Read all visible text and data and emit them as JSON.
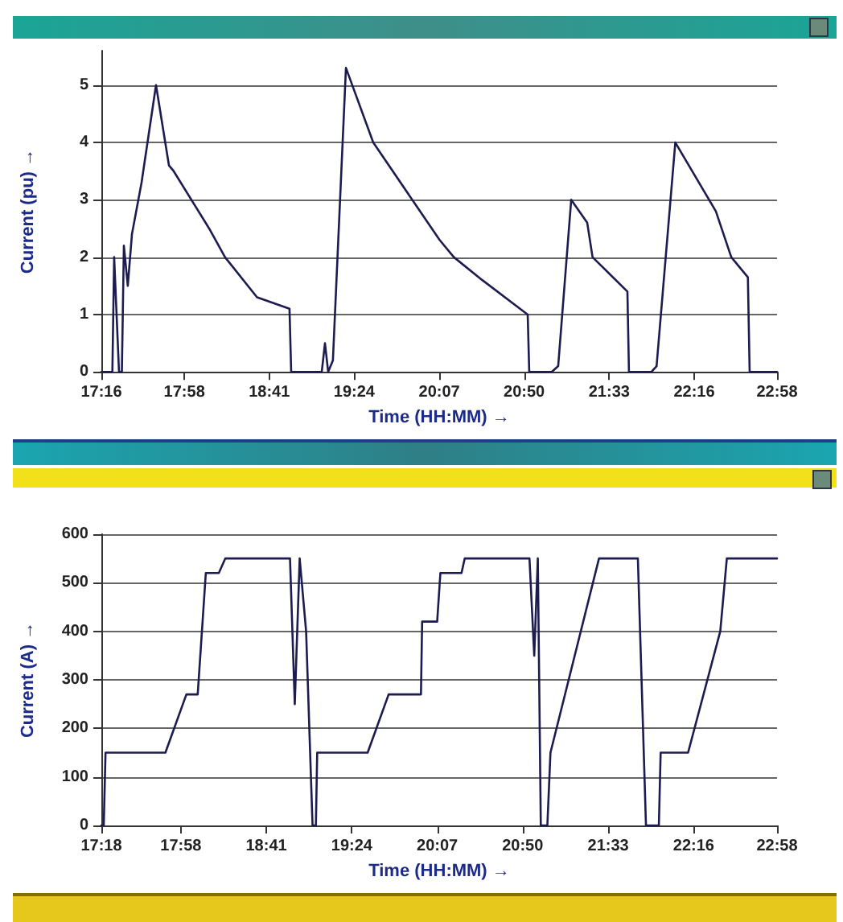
{
  "chart_data": [
    {
      "type": "line",
      "xlabel": "Time (HH:MM) →",
      "ylabel": "Current (pu) →",
      "grid": "y",
      "marker": "none",
      "line_style": "solid",
      "xlim": [
        17.267,
        22.966
      ],
      "xticks": [
        {
          "value": 17.267,
          "label": "17:16"
        },
        {
          "value": 17.967,
          "label": "17:58"
        },
        {
          "value": 18.683,
          "label": "18:41"
        },
        {
          "value": 19.4,
          "label": "19:24"
        },
        {
          "value": 20.117,
          "label": "20:07"
        },
        {
          "value": 20.833,
          "label": "20:50"
        },
        {
          "value": 21.55,
          "label": "21:33"
        },
        {
          "value": 22.267,
          "label": "22:16"
        },
        {
          "value": 22.966,
          "label": "22:58"
        }
      ],
      "ylim": [
        0,
        5.6
      ],
      "yticks": [
        0,
        1,
        2,
        3,
        4,
        5
      ],
      "series": [
        {
          "color": "#1c1c50",
          "x": [
            17.267,
            17.36,
            17.375,
            17.416,
            17.44,
            17.457,
            17.49,
            17.525,
            17.606,
            17.728,
            17.837,
            17.877,
            18.176,
            18.31,
            18.58,
            18.854,
            18.868,
            19.126,
            19.153,
            19.18,
            19.22,
            19.33,
            19.56,
            20.12,
            20.24,
            20.48,
            20.863,
            20.876,
            21.066,
            21.12,
            21.23,
            21.365,
            21.41,
            21.704,
            21.717,
            21.907,
            21.95,
            22.108,
            22.45,
            22.58,
            22.72,
            22.735,
            22.966
          ],
          "values": [
            0,
            0,
            2,
            0,
            0,
            2.2,
            1.5,
            2.4,
            3.3,
            5.0,
            3.6,
            3.5,
            2.5,
            2.0,
            1.3,
            1.1,
            0,
            0,
            0.5,
            0,
            0.2,
            5.3,
            4.0,
            2.3,
            2.0,
            1.6,
            1.0,
            0,
            0,
            0.1,
            3.0,
            2.6,
            2.0,
            1.4,
            0,
            0,
            0.1,
            4.0,
            2.8,
            2.0,
            1.65,
            0,
            0
          ]
        }
      ]
    },
    {
      "type": "line",
      "xlabel": "Time (HH:MM) →",
      "ylabel": "Current (A) →",
      "grid": "y",
      "marker": "none",
      "line_style": "solid",
      "xlim": [
        17.3,
        22.966
      ],
      "xticks": [
        {
          "value": 17.3,
          "label": "17:18"
        },
        {
          "value": 17.967,
          "label": "17:58"
        },
        {
          "value": 18.683,
          "label": "18:41"
        },
        {
          "value": 19.4,
          "label": "19:24"
        },
        {
          "value": 20.117,
          "label": "20:07"
        },
        {
          "value": 20.833,
          "label": "20:50"
        },
        {
          "value": 21.55,
          "label": "21:33"
        },
        {
          "value": 22.267,
          "label": "22:16"
        },
        {
          "value": 22.966,
          "label": "22:58"
        }
      ],
      "ylim": [
        0,
        600
      ],
      "yticks": [
        0,
        100,
        200,
        300,
        400,
        500,
        600
      ],
      "series": [
        {
          "color": "#1c1c50",
          "x": [
            17.3,
            17.32,
            17.335,
            17.837,
            18.013,
            18.108,
            18.176,
            18.285,
            18.339,
            18.882,
            18.922,
            18.963,
            19.017,
            19.071,
            19.099,
            19.11,
            19.533,
            19.709,
            19.98,
            19.99,
            20.116,
            20.143,
            20.32,
            20.347,
            20.89,
            20.93,
            20.96,
            20.985,
            21.04,
            21.066,
            21.473,
            21.799,
            21.867,
            21.975,
            21.99,
            22.22,
            22.49,
            22.545,
            22.966
          ],
          "values": [
            0,
            0,
            150,
            150,
            270,
            270,
            520,
            520,
            550,
            550,
            250,
            550,
            400,
            0,
            0,
            150,
            150,
            270,
            270,
            420,
            420,
            520,
            520,
            550,
            550,
            350,
            550,
            0,
            0,
            150,
            550,
            550,
            0,
            0,
            150,
            150,
            400,
            550,
            550
          ]
        }
      ]
    }
  ]
}
